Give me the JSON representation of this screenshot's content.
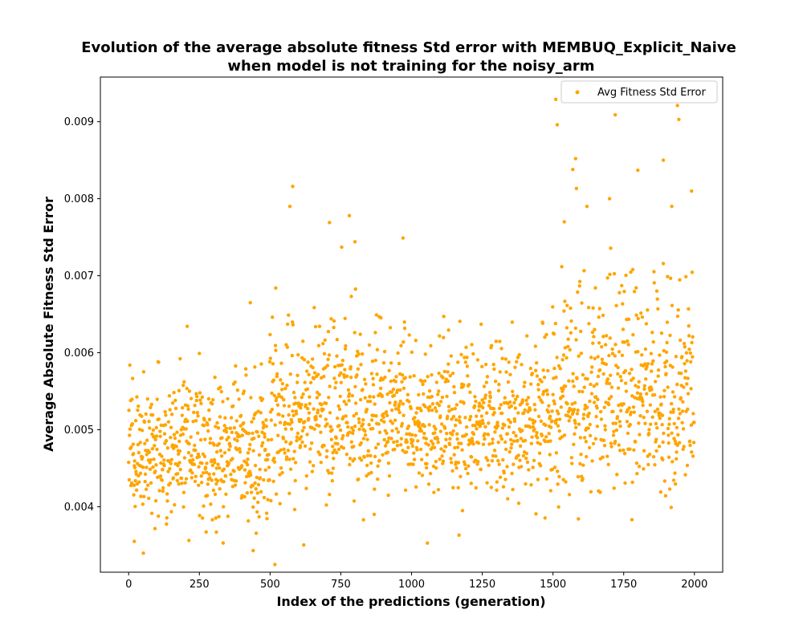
{
  "chart_data": {
    "type": "scatter",
    "title": "Evolution of the average absolute fitness Std error with MEMBUQ_Explicit_Naive",
    "subtitle": "when model is not training for the noisy_arm",
    "xlabel": "Index of the predictions (generation)",
    "ylabel": "Average Absolute Fitness Std Error",
    "xlim": [
      -100,
      2100
    ],
    "ylim": [
      0.00315,
      0.00958
    ],
    "xticks": [
      0,
      250,
      500,
      750,
      1000,
      1250,
      1500,
      1750,
      2000
    ],
    "xtick_labels": [
      "0",
      "250",
      "500",
      "750",
      "1000",
      "1250",
      "1500",
      "1750",
      "2000"
    ],
    "yticks": [
      0.004,
      0.005,
      0.006,
      0.007,
      0.008,
      0.009
    ],
    "ytick_labels": [
      "0.004",
      "0.005",
      "0.006",
      "0.007",
      "0.008",
      "0.009"
    ],
    "grid": false,
    "legend": {
      "position": "top-right",
      "entries": [
        "Avg Fitness Std Error"
      ]
    },
    "series": [
      {
        "name": "Avg Fitness Std Error",
        "color": "#FFA500",
        "marker_radius": 2.2,
        "n_points": 2000,
        "trend_segments": [
          {
            "x_start": 0,
            "x_end": 500,
            "mean": 0.0047,
            "spread": 0.0004
          },
          {
            "x_start": 500,
            "x_end": 1000,
            "mean": 0.0052,
            "spread": 0.0005
          },
          {
            "x_start": 1000,
            "x_end": 1500,
            "mean": 0.0051,
            "spread": 0.00045
          },
          {
            "x_start": 1500,
            "x_end": 2000,
            "mean": 0.0054,
            "spread": 0.0006
          }
        ],
        "outliers": [
          {
            "x": 20,
            "y": 0.00355
          },
          {
            "x": 440,
            "y": 0.00343
          },
          {
            "x": 310,
            "y": 0.00367
          },
          {
            "x": 830,
            "y": 0.00383
          },
          {
            "x": 430,
            "y": 0.00665
          },
          {
            "x": 520,
            "y": 0.00684
          },
          {
            "x": 570,
            "y": 0.0079
          },
          {
            "x": 580,
            "y": 0.00816
          },
          {
            "x": 710,
            "y": 0.00769
          },
          {
            "x": 780,
            "y": 0.00778
          },
          {
            "x": 800,
            "y": 0.00744
          },
          {
            "x": 970,
            "y": 0.00749
          },
          {
            "x": 1510,
            "y": 0.00929
          },
          {
            "x": 1515,
            "y": 0.00896
          },
          {
            "x": 1570,
            "y": 0.00838
          },
          {
            "x": 1580,
            "y": 0.00852
          },
          {
            "x": 1720,
            "y": 0.00909
          },
          {
            "x": 1800,
            "y": 0.00837
          },
          {
            "x": 1890,
            "y": 0.0085
          },
          {
            "x": 1940,
            "y": 0.00921
          },
          {
            "x": 1945,
            "y": 0.00903
          },
          {
            "x": 1990,
            "y": 0.0081
          },
          {
            "x": 1920,
            "y": 0.0079
          },
          {
            "x": 1540,
            "y": 0.0077
          },
          {
            "x": 1620,
            "y": 0.0079
          },
          {
            "x": 1700,
            "y": 0.008
          }
        ]
      }
    ]
  }
}
